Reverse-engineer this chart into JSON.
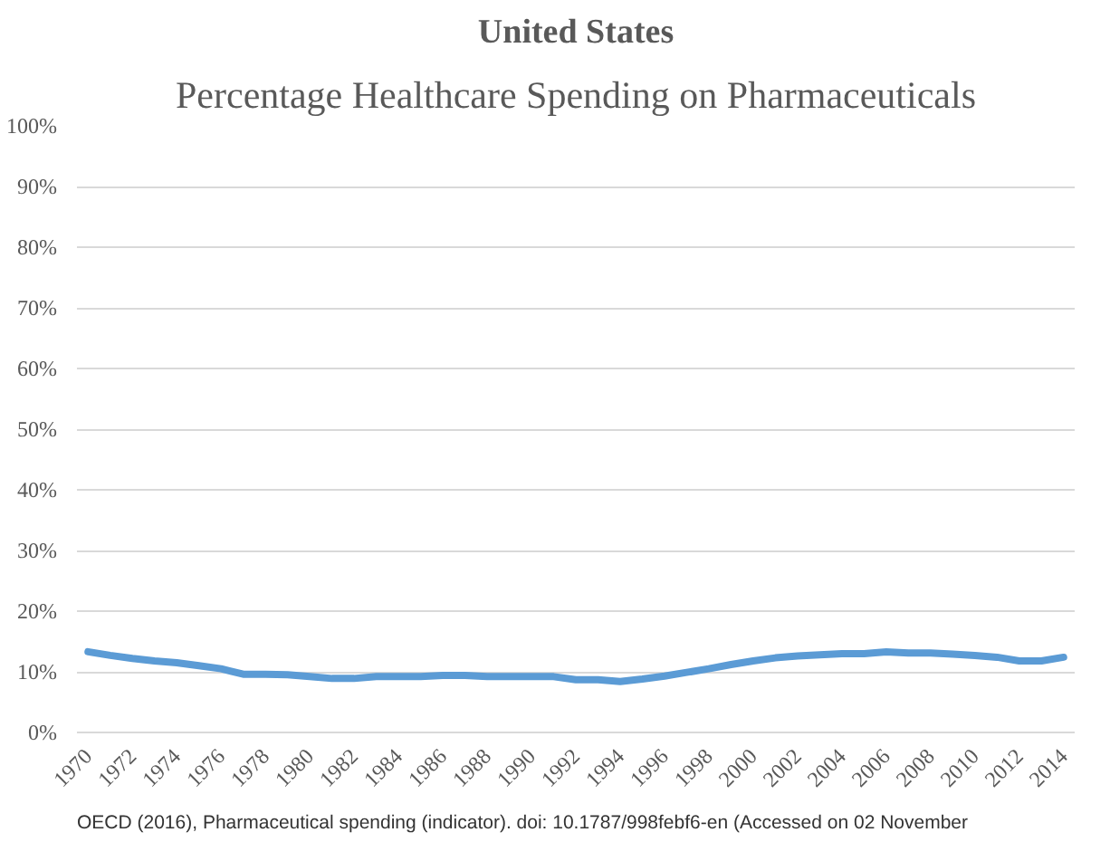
{
  "chart_data": {
    "type": "line",
    "title": "United States",
    "subtitle": "Percentage Healthcare Spending on Pharmaceuticals",
    "x": [
      1970,
      1971,
      1972,
      1973,
      1974,
      1975,
      1976,
      1977,
      1978,
      1979,
      1980,
      1981,
      1982,
      1983,
      1984,
      1985,
      1986,
      1987,
      1988,
      1989,
      1990,
      1991,
      1992,
      1993,
      1994,
      1995,
      1996,
      1997,
      1998,
      1999,
      2000,
      2001,
      2002,
      2003,
      2004,
      2005,
      2006,
      2007,
      2008,
      2009,
      2010,
      2011,
      2012,
      2013,
      2014
    ],
    "series": [
      {
        "color": "#5b9bd5",
        "values": [
          13.3,
          12.7,
          12.2,
          11.8,
          11.5,
          11.0,
          10.5,
          9.6,
          9.6,
          9.5,
          9.2,
          8.9,
          8.9,
          9.2,
          9.2,
          9.2,
          9.4,
          9.4,
          9.2,
          9.2,
          9.2,
          9.2,
          8.7,
          8.7,
          8.4,
          8.8,
          9.3,
          9.9,
          10.5,
          11.2,
          11.8,
          12.3,
          12.6,
          12.8,
          13.0,
          13.0,
          13.3,
          13.1,
          13.1,
          12.9,
          12.7,
          12.4,
          11.8,
          11.8,
          12.4
        ]
      }
    ],
    "xlim": [
      1969.5,
      2014.5
    ],
    "xticks": [
      1970,
      1972,
      1974,
      1976,
      1978,
      1980,
      1982,
      1984,
      1986,
      1988,
      1990,
      1992,
      1994,
      1996,
      1998,
      2000,
      2002,
      2004,
      2006,
      2008,
      2010,
      2012,
      2014
    ],
    "ylim": [
      0,
      100
    ],
    "yticks": [
      {
        "value": 0,
        "label": "0%"
      },
      {
        "value": 10,
        "label": "10%"
      },
      {
        "value": 20,
        "label": "20%"
      },
      {
        "value": 30,
        "label": "30%"
      },
      {
        "value": 40,
        "label": "40%"
      },
      {
        "value": 50,
        "label": "50%"
      },
      {
        "value": 60,
        "label": "60%"
      },
      {
        "value": 70,
        "label": "70%"
      },
      {
        "value": 80,
        "label": "80%"
      },
      {
        "value": 90,
        "label": "90%"
      },
      {
        "value": 100,
        "label": "100%"
      }
    ],
    "grid": "y",
    "marker": "none",
    "line_style": "solid",
    "annotations": [
      "OECD (2016), Pharmaceutical spending (indicator). doi: 10.1787/998febf6-en (Accessed on 02 November"
    ]
  }
}
